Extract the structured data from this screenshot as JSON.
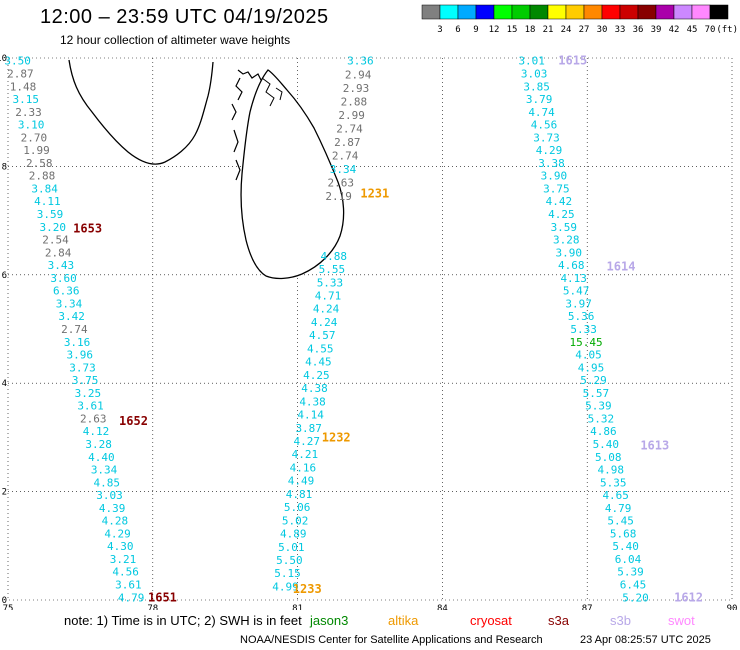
{
  "header": {
    "title": "12:00 – 23:59 UTC 04/19/2025",
    "subtitle": "12 hour collection of altimeter wave heights"
  },
  "colorbar": {
    "unit": "(ft)",
    "colors": [
      "#808080",
      "#00ffff",
      "#00aaff",
      "#0000ff",
      "#00ff00",
      "#00cc00",
      "#008800",
      "#ffff00",
      "#ffcc00",
      "#ff8800",
      "#ff0000",
      "#cc0000",
      "#880000",
      "#aa00aa",
      "#cc88ff",
      "#ff88ff",
      "#000000"
    ],
    "labels": [
      "3",
      "6",
      "9",
      "12",
      "15",
      "18",
      "21",
      "24",
      "27",
      "30",
      "33",
      "36",
      "39",
      "42",
      "45",
      "70"
    ]
  },
  "map": {
    "x_ticks": [
      "75",
      "78",
      "81",
      "84",
      "87",
      "90"
    ],
    "y_ticks": [
      "0",
      "2",
      "4",
      "6",
      "8",
      "10"
    ]
  },
  "colors": {
    "gray": "#707070",
    "cyan": "#00c8e0",
    "green": "#00aa00",
    "darkred": "#880000",
    "orange": "#ee9900",
    "lavender": "#b8a8e8"
  },
  "chart_data": {
    "type": "scatter",
    "xlim": [
      75,
      90
    ],
    "ylim": [
      0,
      10
    ],
    "passes": [
      {
        "id": "1653",
        "lon": 76.65,
        "lat": 6.85,
        "color": "darkred"
      },
      {
        "id": "1652",
        "lon": 77.6,
        "lat": 3.3,
        "color": "darkred"
      },
      {
        "id": "1651",
        "lon": 78.2,
        "lat": 0.05,
        "color": "darkred"
      },
      {
        "id": "1231",
        "lon": 82.6,
        "lat": 7.5,
        "color": "orange"
      },
      {
        "id": "1232",
        "lon": 81.8,
        "lat": 3.0,
        "color": "orange"
      },
      {
        "id": "1233",
        "lon": 81.2,
        "lat": 0.2,
        "color": "orange"
      },
      {
        "id": "1615",
        "lon": 86.7,
        "lat": 9.95,
        "color": "lavender"
      },
      {
        "id": "1614",
        "lon": 87.7,
        "lat": 6.15,
        "color": "lavender"
      },
      {
        "id": "1613",
        "lon": 88.4,
        "lat": 2.85,
        "color": "lavender"
      },
      {
        "id": "1612",
        "lon": 89.1,
        "lat": 0.05,
        "color": "lavender"
      }
    ],
    "tracks": [
      {
        "name": "track-1651-1653",
        "lon_start": 75.2,
        "lat_start": 9.95,
        "lon_end": 77.55,
        "lat_end": 0.05,
        "values": [
          [
            "3.50",
            "cyan"
          ],
          [
            "2.87",
            "gray"
          ],
          [
            "1.48",
            "gray"
          ],
          [
            "3.15",
            "cyan"
          ],
          [
            "2.33",
            "gray"
          ],
          [
            "3.10",
            "cyan"
          ],
          [
            "2.70",
            "gray"
          ],
          [
            "1.99",
            "gray"
          ],
          [
            "2.58",
            "gray"
          ],
          [
            "2.88",
            "gray"
          ],
          [
            "3.84",
            "cyan"
          ],
          [
            "4.11",
            "cyan"
          ],
          [
            "3.59",
            "cyan"
          ],
          [
            "3.20",
            "cyan"
          ],
          [
            "2.54",
            "gray"
          ],
          [
            "2.84",
            "gray"
          ],
          [
            "3.43",
            "cyan"
          ],
          [
            "3.60",
            "cyan"
          ],
          [
            "6.36",
            "cyan"
          ],
          [
            "3.34",
            "cyan"
          ],
          [
            "3.42",
            "cyan"
          ],
          [
            "2.74",
            "gray"
          ],
          [
            "3.16",
            "cyan"
          ],
          [
            "3.96",
            "cyan"
          ],
          [
            "3.73",
            "cyan"
          ],
          [
            "3.75",
            "cyan"
          ],
          [
            "3.25",
            "cyan"
          ],
          [
            "3.61",
            "cyan"
          ],
          [
            "2.63",
            "gray"
          ],
          [
            "4.12",
            "cyan"
          ],
          [
            "3.28",
            "cyan"
          ],
          [
            "4.40",
            "cyan"
          ],
          [
            "3.34",
            "cyan"
          ],
          [
            "4.85",
            "cyan"
          ],
          [
            "3.03",
            "cyan"
          ],
          [
            "4.39",
            "cyan"
          ],
          [
            "4.28",
            "cyan"
          ],
          [
            "4.29",
            "cyan"
          ],
          [
            "4.30",
            "cyan"
          ],
          [
            "3.21",
            "cyan"
          ],
          [
            "4.56",
            "cyan"
          ],
          [
            "3.61",
            "cyan"
          ],
          [
            "4.79",
            "cyan"
          ]
        ]
      },
      {
        "name": "track-1231",
        "lon_start": 82.3,
        "lat_start": 9.95,
        "lon_end": 81.85,
        "lat_end": 7.45,
        "values": [
          [
            "3.36",
            "cyan"
          ],
          [
            "2.94",
            "gray"
          ],
          [
            "2.93",
            "gray"
          ],
          [
            "2.88",
            "gray"
          ],
          [
            "2.99",
            "gray"
          ],
          [
            "2.74",
            "gray"
          ],
          [
            "2.87",
            "gray"
          ],
          [
            "2.74",
            "gray"
          ],
          [
            "3.34",
            "cyan"
          ],
          [
            "2.63",
            "gray"
          ],
          [
            "2.19",
            "gray"
          ]
        ]
      },
      {
        "name": "track-1232-1233",
        "lon_start": 81.75,
        "lat_start": 6.35,
        "lon_end": 80.75,
        "lat_end": 0.25,
        "values": [
          [
            "4.88",
            "cyan"
          ],
          [
            "5.55",
            "cyan"
          ],
          [
            "5.33",
            "cyan"
          ],
          [
            "4.71",
            "cyan"
          ],
          [
            "4.24",
            "cyan"
          ],
          [
            "4.24",
            "cyan"
          ],
          [
            "4.57",
            "cyan"
          ],
          [
            "4.55",
            "cyan"
          ],
          [
            "4.45",
            "cyan"
          ],
          [
            "4.25",
            "cyan"
          ],
          [
            "4.38",
            "cyan"
          ],
          [
            "4.38",
            "cyan"
          ],
          [
            "4.14",
            "cyan"
          ],
          [
            "3.87",
            "cyan"
          ],
          [
            "4.27",
            "cyan"
          ],
          [
            "4.21",
            "cyan"
          ],
          [
            "4.16",
            "cyan"
          ],
          [
            "4.49",
            "cyan"
          ],
          [
            "4.81",
            "cyan"
          ],
          [
            "5.06",
            "cyan"
          ],
          [
            "5.02",
            "cyan"
          ],
          [
            "4.89",
            "cyan"
          ],
          [
            "5.01",
            "cyan"
          ],
          [
            "5.50",
            "cyan"
          ],
          [
            "5.15",
            "cyan"
          ],
          [
            "4.99",
            "cyan"
          ]
        ]
      },
      {
        "name": "track-1612-1615",
        "lon_start": 85.85,
        "lat_start": 9.95,
        "lon_end": 88.0,
        "lat_end": 0.05,
        "values": [
          [
            "3.01",
            "cyan"
          ],
          [
            "3.03",
            "cyan"
          ],
          [
            "3.85",
            "cyan"
          ],
          [
            "3.79",
            "cyan"
          ],
          [
            "4.74",
            "cyan"
          ],
          [
            "4.56",
            "cyan"
          ],
          [
            "3.73",
            "cyan"
          ],
          [
            "4.29",
            "cyan"
          ],
          [
            "3.38",
            "cyan"
          ],
          [
            "3.90",
            "cyan"
          ],
          [
            "3.75",
            "cyan"
          ],
          [
            "4.42",
            "cyan"
          ],
          [
            "4.25",
            "cyan"
          ],
          [
            "3.59",
            "cyan"
          ],
          [
            "3.28",
            "cyan"
          ],
          [
            "3.90",
            "cyan"
          ],
          [
            "4.68",
            "cyan"
          ],
          [
            "4.13",
            "cyan"
          ],
          [
            "5.47",
            "cyan"
          ],
          [
            "3.97",
            "cyan"
          ],
          [
            "5.36",
            "cyan"
          ],
          [
            "5.33",
            "cyan"
          ],
          [
            "15.45",
            "green"
          ],
          [
            "4.05",
            "cyan"
          ],
          [
            "4.95",
            "cyan"
          ],
          [
            "5.29",
            "cyan"
          ],
          [
            "5.57",
            "cyan"
          ],
          [
            "5.39",
            "cyan"
          ],
          [
            "5.32",
            "cyan"
          ],
          [
            "4.86",
            "cyan"
          ],
          [
            "5.40",
            "cyan"
          ],
          [
            "5.08",
            "cyan"
          ],
          [
            "4.98",
            "cyan"
          ],
          [
            "5.35",
            "cyan"
          ],
          [
            "4.65",
            "cyan"
          ],
          [
            "4.79",
            "cyan"
          ],
          [
            "5.45",
            "cyan"
          ],
          [
            "5.68",
            "cyan"
          ],
          [
            "5.40",
            "cyan"
          ],
          [
            "6.04",
            "cyan"
          ],
          [
            "5.39",
            "cyan"
          ],
          [
            "6.45",
            "cyan"
          ],
          [
            "5.20",
            "cyan"
          ]
        ]
      }
    ]
  },
  "footer": {
    "note": "note:  1) Time is in UTC; 2) SWH is in feet",
    "legend": [
      {
        "label": "jason3",
        "color": "#008800"
      },
      {
        "label": "altika",
        "color": "#ee9900"
      },
      {
        "label": "cryosat",
        "color": "#ff0000"
      },
      {
        "label": "s3a",
        "color": "#880000"
      },
      {
        "label": "s3b",
        "color": "#b8a8e8"
      },
      {
        "label": "swot",
        "color": "#ff88ff"
      }
    ],
    "credit": "NOAA/NESDIS Center for Satellite Applications and Research",
    "timestamp": "23 Apr 08:25:57 UTC 2025"
  }
}
